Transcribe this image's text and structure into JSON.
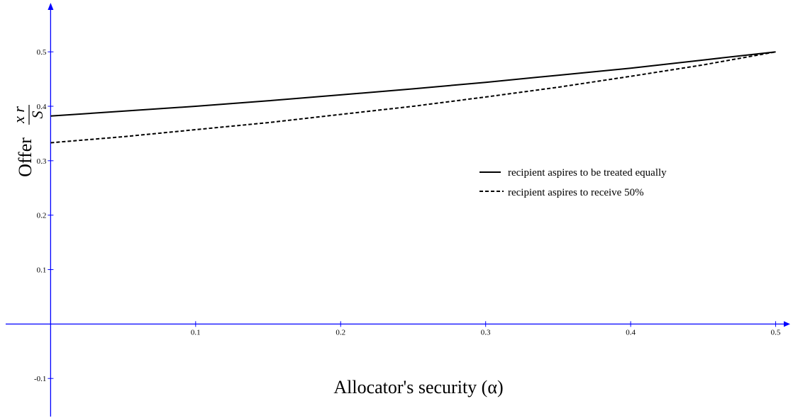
{
  "chart_data": {
    "type": "line",
    "xlabel": "Allocator's security (α)",
    "ylabel": {
      "word": "Offer",
      "numerator": "x r",
      "denominator": "S"
    },
    "xlim": [
      -0.031,
      0.51
    ],
    "ylim": [
      -0.17,
      0.59
    ],
    "x_ticks": [
      {
        "value": 0.1,
        "label": "0.1"
      },
      {
        "value": 0.2,
        "label": "0.2"
      },
      {
        "value": 0.3,
        "label": "0.3"
      },
      {
        "value": 0.4,
        "label": "0.4"
      },
      {
        "value": 0.5,
        "label": "0.5"
      }
    ],
    "y_ticks": [
      {
        "value": -0.1,
        "label": "-0.1"
      },
      {
        "value": 0.1,
        "label": "0.1"
      },
      {
        "value": 0.2,
        "label": "0.2"
      },
      {
        "value": 0.3,
        "label": "0.3"
      },
      {
        "value": 0.4,
        "label": "0.4"
      },
      {
        "value": 0.5,
        "label": "0.5"
      }
    ],
    "grid": false,
    "legend_position": "right-center",
    "axis_color": "#0000ff",
    "series": [
      {
        "name": "recipient aspires to be treated equally",
        "style": "solid",
        "color": "#000000",
        "x": [
          0,
          0.05,
          0.1,
          0.15,
          0.2,
          0.25,
          0.3,
          0.35,
          0.4,
          0.45,
          0.5
        ],
        "y": [
          0.382,
          0.391,
          0.4,
          0.41,
          0.421,
          0.432,
          0.444,
          0.457,
          0.47,
          0.485,
          0.5
        ]
      },
      {
        "name": "recipient aspires to receive 50%",
        "style": "dashed",
        "color": "#000000",
        "x": [
          0,
          0.05,
          0.1,
          0.15,
          0.2,
          0.25,
          0.3,
          0.35,
          0.4,
          0.45,
          0.5
        ],
        "y": [
          0.333,
          0.344,
          0.357,
          0.37,
          0.385,
          0.4,
          0.417,
          0.435,
          0.455,
          0.476,
          0.5
        ]
      }
    ]
  }
}
